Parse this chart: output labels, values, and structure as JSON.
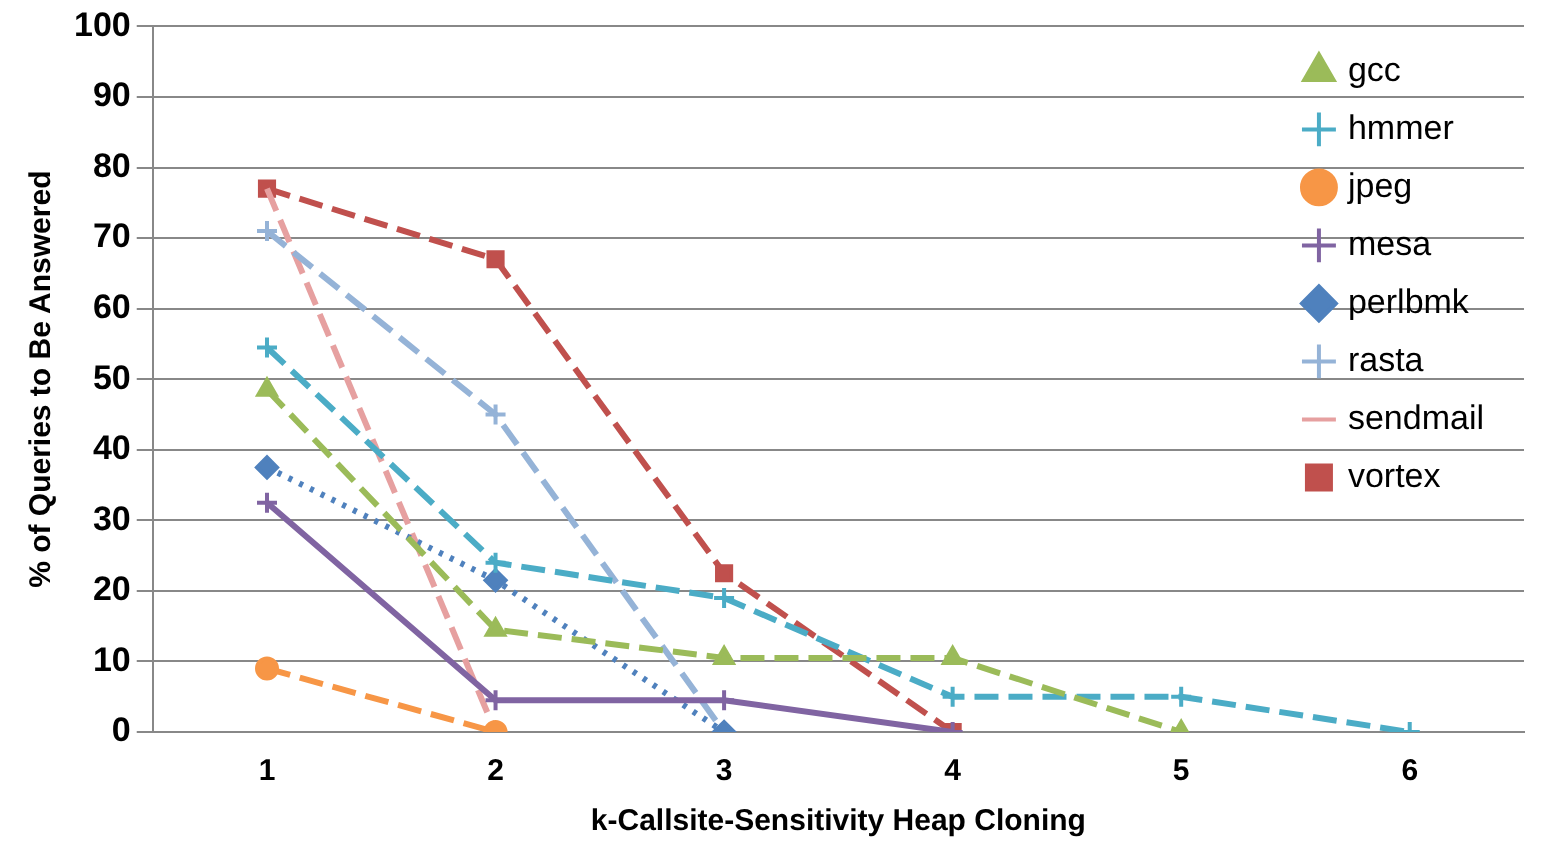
{
  "chart_data": {
    "type": "line",
    "xlabel": "k-Callsite-Sensitivity Heap Cloning",
    "ylabel": "% of Queries to Be Answered",
    "categories": [
      "1",
      "2",
      "3",
      "4",
      "5",
      "6"
    ],
    "series": [
      {
        "name": "gcc",
        "color": "#9bbb59",
        "marker": "triangle",
        "line_style": "dashed",
        "values": [
          48.5,
          14.5,
          10.5,
          10.5,
          0,
          null
        ]
      },
      {
        "name": "hmmer",
        "color": "#4bacc6",
        "marker": "cross",
        "line_style": "dashed",
        "values": [
          54.5,
          24,
          19,
          5,
          5,
          0
        ]
      },
      {
        "name": "jpeg",
        "color": "#f79646",
        "marker": "circle",
        "line_style": "dashed",
        "values": [
          9,
          0,
          null,
          null,
          null,
          null
        ]
      },
      {
        "name": "mesa",
        "color": "#8064a2",
        "marker": "cross",
        "line_style": "solid",
        "values": [
          32.5,
          4.5,
          4.5,
          0,
          null,
          null
        ]
      },
      {
        "name": "perlbmk",
        "color": "#4f81bd",
        "marker": "diamond",
        "line_style": "dotted",
        "values": [
          37.5,
          21.5,
          0,
          null,
          null,
          null
        ]
      },
      {
        "name": "rasta",
        "color": "#95b3d7",
        "marker": "cross",
        "line_style": "dashed",
        "values": [
          71,
          45,
          0,
          null,
          null,
          null
        ]
      },
      {
        "name": "sendmail",
        "color": "#e6a0a0",
        "marker": "none",
        "line_style": "dashed",
        "values": [
          77,
          0,
          null,
          null,
          null,
          null
        ]
      },
      {
        "name": "vortex",
        "color": "#c0504d",
        "marker": "square",
        "line_style": "dashed",
        "values": [
          77,
          67,
          22.5,
          0,
          null,
          null
        ]
      }
    ],
    "ylim": [
      0,
      100
    ],
    "yticks": [
      0,
      10,
      20,
      30,
      40,
      50,
      60,
      70,
      80,
      90,
      100
    ],
    "grid": "y",
    "legend": "top right"
  }
}
